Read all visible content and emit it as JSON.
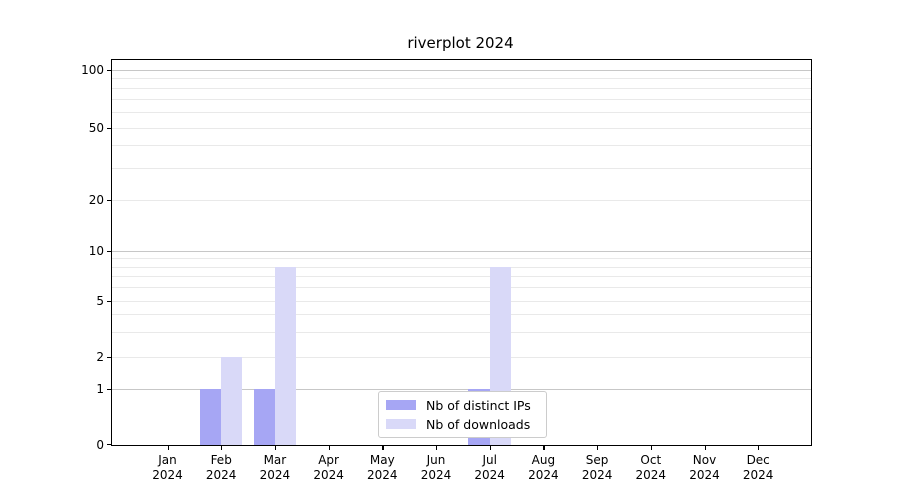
{
  "title": "riverplot 2024",
  "chart_data": {
    "type": "bar",
    "title": "riverplot 2024",
    "categories": [
      "Jan",
      "Feb",
      "Mar",
      "Apr",
      "May",
      "Jun",
      "Jul",
      "Aug",
      "Sep",
      "Oct",
      "Nov",
      "Dec"
    ],
    "x_tick_second_line": "2024",
    "series": [
      {
        "name": "Nb of distinct IPs",
        "color": "#a6a6f4",
        "values": [
          0,
          1,
          1,
          0,
          0,
          0,
          1,
          0,
          0,
          0,
          0,
          0
        ]
      },
      {
        "name": "Nb of downloads",
        "color": "#d9d9f8",
        "values": [
          0,
          2,
          8,
          0,
          0,
          0,
          8,
          0,
          0,
          0,
          0,
          0
        ]
      }
    ],
    "y_axis": {
      "scale": "log-like",
      "ticks": [
        0,
        1,
        2,
        5,
        10,
        20,
        50,
        100
      ],
      "minor_gridlines": [
        2,
        3,
        4,
        5,
        6,
        7,
        8,
        9,
        20,
        30,
        40,
        50,
        60,
        70,
        80,
        90
      ],
      "major_gridlines": [
        1,
        10,
        100
      ]
    },
    "grid": "on",
    "legend_position": "lower center",
    "colors": {
      "frame": "#000000",
      "major_grid": "#c7c7c7",
      "minor_grid": "#e9e9e9",
      "text": "#000000"
    }
  }
}
